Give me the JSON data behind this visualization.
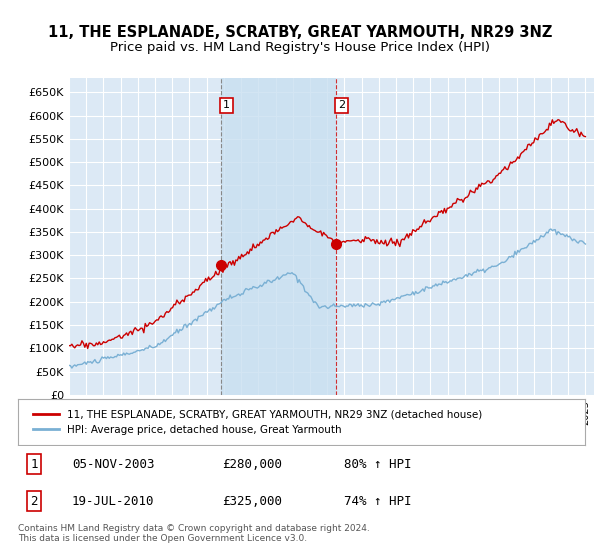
{
  "title": "11, THE ESPLANADE, SCRATBY, GREAT YARMOUTH, NR29 3NZ",
  "subtitle": "Price paid vs. HM Land Registry's House Price Index (HPI)",
  "ylim": [
    0,
    680000
  ],
  "yticks": [
    0,
    50000,
    100000,
    150000,
    200000,
    250000,
    300000,
    350000,
    400000,
    450000,
    500000,
    550000,
    600000,
    650000
  ],
  "ytick_labels": [
    "£0",
    "£50K",
    "£100K",
    "£150K",
    "£200K",
    "£250K",
    "£300K",
    "£350K",
    "£400K",
    "£450K",
    "£500K",
    "£550K",
    "£600K",
    "£650K"
  ],
  "background_color": "#ffffff",
  "plot_bg_color": "#dce9f5",
  "shade_color": "#c8dff0",
  "grid_color": "#ffffff",
  "red_color": "#cc0000",
  "blue_color": "#7ab0d4",
  "purchase1_year": 2003.84,
  "purchase1_value": 280000,
  "purchase2_year": 2010.54,
  "purchase2_value": 325000,
  "legend_label_red": "11, THE ESPLANADE, SCRATBY, GREAT YARMOUTH, NR29 3NZ (detached house)",
  "legend_label_blue": "HPI: Average price, detached house, Great Yarmouth",
  "table_row1": [
    "1",
    "05-NOV-2003",
    "£280,000",
    "80% ↑ HPI"
  ],
  "table_row2": [
    "2",
    "19-JUL-2010",
    "£325,000",
    "74% ↑ HPI"
  ],
  "footer": "Contains HM Land Registry data © Crown copyright and database right 2024.\nThis data is licensed under the Open Government Licence v3.0."
}
